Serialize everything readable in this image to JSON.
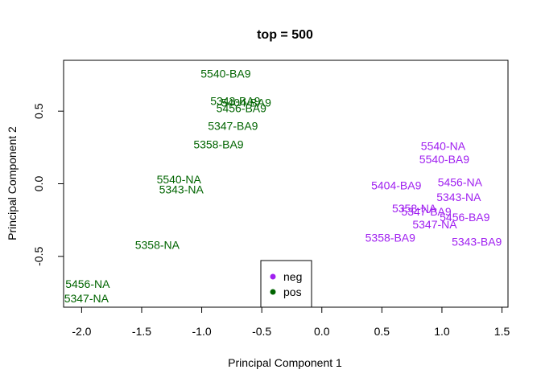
{
  "chart_data": {
    "type": "scatter",
    "title": "top = 500",
    "xlabel": "Principal Component 1",
    "ylabel": "Principal Component 2",
    "xlim": [
      -2.15,
      1.55
    ],
    "ylim": [
      -0.85,
      0.85
    ],
    "xticks": [
      -2.0,
      -1.5,
      -1.0,
      -0.5,
      0.0,
      0.5,
      1.0,
      1.5
    ],
    "xtick_labels": [
      "-2.0",
      "-1.5",
      "-1.0",
      "-0.5",
      "0.0",
      "0.5",
      "1.0",
      "1.5"
    ],
    "yticks": [
      -0.5,
      0.0,
      0.5
    ],
    "ytick_labels": [
      "-0.5",
      "0.0",
      "0.5"
    ],
    "grid": false,
    "legend_position": "bottom-center",
    "legend": [
      {
        "name": "neg",
        "color": "#A020F0"
      },
      {
        "name": "pos",
        "color": "#006400"
      }
    ],
    "series": [
      {
        "name": "neg",
        "color": "#A020F0",
        "points": [
          {
            "label": "5540-NA",
            "x": 1.01,
            "y": 0.26
          },
          {
            "label": "5540-BA9",
            "x": 1.02,
            "y": 0.17
          },
          {
            "label": "5456-NA",
            "x": 1.15,
            "y": 0.01
          },
          {
            "label": "5404-BA9",
            "x": 0.62,
            "y": -0.01
          },
          {
            "label": "5343-NA",
            "x": 1.14,
            "y": -0.09
          },
          {
            "label": "5358-NA",
            "x": 0.77,
            "y": -0.17
          },
          {
            "label": "5347-BA9",
            "x": 0.87,
            "y": -0.19
          },
          {
            "label": "5456-BA9",
            "x": 1.19,
            "y": -0.23
          },
          {
            "label": "5347-NA",
            "x": 0.94,
            "y": -0.28
          },
          {
            "label": "5358-BA9",
            "x": 0.57,
            "y": -0.37
          },
          {
            "label": "5343-BA9",
            "x": 1.29,
            "y": -0.4
          }
        ]
      },
      {
        "name": "pos",
        "color": "#006400",
        "points": [
          {
            "label": "5540-BA9",
            "x": -0.8,
            "y": 0.76
          },
          {
            "label": "5343-BA9",
            "x": -0.72,
            "y": 0.57
          },
          {
            "label": "5404-BA9",
            "x": -0.63,
            "y": 0.56
          },
          {
            "label": "5456-BA9",
            "x": -0.67,
            "y": 0.52
          },
          {
            "label": "5347-BA9",
            "x": -0.74,
            "y": 0.4
          },
          {
            "label": "5358-BA9",
            "x": -0.86,
            "y": 0.27
          },
          {
            "label": "5540-NA",
            "x": -1.19,
            "y": 0.03
          },
          {
            "label": "5343-NA",
            "x": -1.17,
            "y": -0.04
          },
          {
            "label": "5358-NA",
            "x": -1.37,
            "y": -0.42
          },
          {
            "label": "5456-NA",
            "x": -1.95,
            "y": -0.69
          },
          {
            "label": "5347-NA",
            "x": -1.96,
            "y": -0.79
          }
        ]
      }
    ]
  }
}
